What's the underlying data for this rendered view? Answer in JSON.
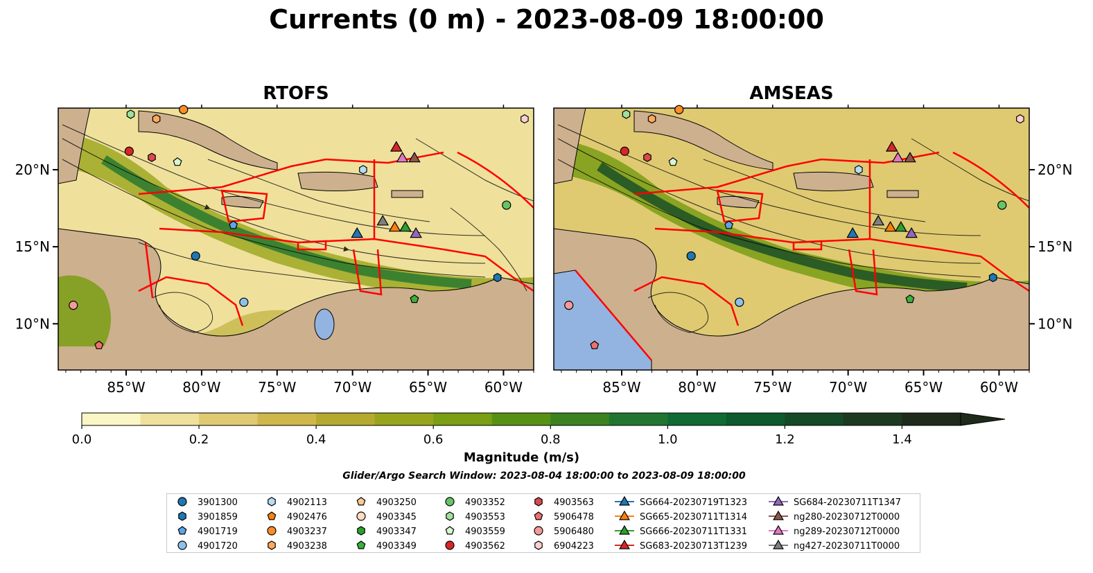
{
  "title": "Currents (0 m) - 2023-08-09 18:00:00",
  "colors": {
    "land": "#cdb08e",
    "water_inland": "#93b4e0",
    "boundary_red": "#ff0000",
    "colormap": [
      "#fbf6c5",
      "#efe19c",
      "#dfca72",
      "#cfb74b",
      "#b5aa30",
      "#98a51c",
      "#7a9e14",
      "#579114",
      "#3c8221",
      "#217530",
      "#0f6a33",
      "#0c5a2e",
      "#154a27",
      "#1c3a20",
      "#1e2a1a"
    ]
  },
  "chart_data": [
    {
      "type": "heatmap",
      "title": "RTOFS",
      "map_extent_lon": [
        -89.5,
        -58.0
      ],
      "map_extent_lat": [
        7.0,
        24.0
      ],
      "x_ticks": [
        -85,
        -80,
        -75,
        -70,
        -65,
        -60
      ],
      "x_tick_labels": [
        "85°W",
        "80°W",
        "75°W",
        "70°W",
        "65°W",
        "60°W"
      ],
      "y_ticks": [
        10,
        15,
        20
      ],
      "y_tick_labels": [
        "10°N",
        "15°N",
        "20°N"
      ],
      "y_tick_side": "left",
      "grid": false
    },
    {
      "type": "heatmap",
      "title": "AMSEAS",
      "map_extent_lon": [
        -89.5,
        -58.0
      ],
      "map_extent_lat": [
        7.0,
        24.0
      ],
      "x_ticks": [
        -85,
        -80,
        -75,
        -70,
        -65,
        -60
      ],
      "x_tick_labels": [
        "85°W",
        "80°W",
        "75°W",
        "70°W",
        "65°W",
        "60°W"
      ],
      "y_ticks": [
        10,
        15,
        20
      ],
      "y_tick_labels": [
        "10°N",
        "15°N",
        "20°N"
      ],
      "y_tick_side": "right",
      "grid": false
    }
  ],
  "colorbar": {
    "label": "Magnitude (m/s)",
    "min": 0.0,
    "max": 1.5,
    "extend": "max",
    "ticks": [
      0.0,
      0.2,
      0.4,
      0.6,
      0.8,
      1.0,
      1.2,
      1.4
    ],
    "tick_labels": [
      "0.0",
      "0.2",
      "0.4",
      "0.6",
      "0.8",
      "1.0",
      "1.2",
      "1.4"
    ]
  },
  "search_window": "Glider/Argo Search Window: 2023-08-04 18:00:00 to 2023-08-09 18:00:00",
  "legend": {
    "columns": [
      [
        {
          "label": "3901300",
          "marker": "circle",
          "color": "#1f77b4"
        },
        {
          "label": "3901859",
          "marker": "hexagon",
          "color": "#1f77b4"
        },
        {
          "label": "4901719",
          "marker": "pentagon",
          "color": "#5da5e4"
        },
        {
          "label": "4901720",
          "marker": "circle",
          "color": "#8ec1ea"
        }
      ],
      [
        {
          "label": "4902113",
          "marker": "hexagon",
          "color": "#b7ddf6"
        },
        {
          "label": "4902476",
          "marker": "pentagon",
          "color": "#ff7f0e"
        },
        {
          "label": "4903237",
          "marker": "circle",
          "color": "#ff8c2a"
        },
        {
          "label": "4903238",
          "marker": "hexagon",
          "color": "#ffa85c"
        }
      ],
      [
        {
          "label": "4903250",
          "marker": "pentagon",
          "color": "#ffc993"
        },
        {
          "label": "4903345",
          "marker": "circle",
          "color": "#ffdcbd"
        },
        {
          "label": "4903347",
          "marker": "hexagon",
          "color": "#2ca02c"
        },
        {
          "label": "4903349",
          "marker": "pentagon",
          "color": "#3bb03b"
        }
      ],
      [
        {
          "label": "4903352",
          "marker": "circle",
          "color": "#66c466"
        },
        {
          "label": "4903553",
          "marker": "hexagon",
          "color": "#9fe09f"
        },
        {
          "label": "4903559",
          "marker": "pentagon",
          "color": "#d6f5d0"
        },
        {
          "label": "4903562",
          "marker": "circle",
          "color": "#d62728"
        }
      ],
      [
        {
          "label": "4903563",
          "marker": "hexagon",
          "color": "#d94a4b"
        },
        {
          "label": "5906478",
          "marker": "pentagon",
          "color": "#ee7070"
        },
        {
          "label": "5906480",
          "marker": "circle",
          "color": "#f39a9a"
        },
        {
          "label": "6904223",
          "marker": "hexagon",
          "color": "#fbd0d0"
        }
      ],
      [
        {
          "label": "SG664-20230719T1323",
          "marker": "triangle",
          "color": "#1f77b4"
        },
        {
          "label": "SG665-20230711T1314",
          "marker": "triangle",
          "color": "#ff7f0e"
        },
        {
          "label": "SG666-20230711T1331",
          "marker": "triangle",
          "color": "#2ca02c"
        },
        {
          "label": "SG683-20230713T1239",
          "marker": "triangle",
          "color": "#d62728"
        }
      ],
      [
        {
          "label": "SG684-20230711T1347",
          "marker": "triangle",
          "color": "#9467bd"
        },
        {
          "label": "ng280-20230712T0000",
          "marker": "triangle",
          "color": "#8c564b"
        },
        {
          "label": "ng289-20230712T0000",
          "marker": "triangle",
          "color": "#e377c2"
        },
        {
          "label": "ng427-20230711T0000",
          "marker": "triangle",
          "color": "#7f7f7f"
        }
      ]
    ]
  },
  "platforms": [
    {
      "id": "4903562",
      "lon": -84.8,
      "lat": 21.2
    },
    {
      "id": "4903563",
      "lon": -83.3,
      "lat": 20.8
    },
    {
      "id": "4903559",
      "lon": -81.6,
      "lat": 20.5
    },
    {
      "id": "4903238",
      "lon": -83.0,
      "lat": 23.3
    },
    {
      "id": "4903553",
      "lon": -84.7,
      "lat": 23.6
    },
    {
      "id": "4903237",
      "lon": -81.2,
      "lat": 23.9
    },
    {
      "id": "6904223",
      "lon": -58.6,
      "lat": 23.3
    },
    {
      "id": "4902113",
      "lon": -69.3,
      "lat": 20.0
    },
    {
      "id": "4903352",
      "lon": -59.8,
      "lat": 17.7
    },
    {
      "id": "4901719",
      "lon": -77.9,
      "lat": 16.4
    },
    {
      "id": "3901300",
      "lon": -80.4,
      "lat": 14.4
    },
    {
      "id": "4901720",
      "lon": -77.2,
      "lat": 11.4
    },
    {
      "id": "3901859",
      "lon": -60.4,
      "lat": 13.0
    },
    {
      "id": "4903349",
      "lon": -65.9,
      "lat": 11.6
    },
    {
      "id": "5906480",
      "lon": -88.5,
      "lat": 11.2
    },
    {
      "id": "5906478",
      "lon": -86.8,
      "lat": 8.6
    }
  ],
  "gliders": [
    {
      "id": "SG664-20230719T1323",
      "lon": -69.7,
      "lat": 15.9
    },
    {
      "id": "SG665-20230711T1314",
      "lon": -67.2,
      "lat": 16.3
    },
    {
      "id": "SG666-20230711T1331",
      "lon": -66.5,
      "lat": 16.3
    },
    {
      "id": "SG684-20230711T1347",
      "lon": -65.8,
      "lat": 15.9
    },
    {
      "id": "ng427-20230711T0000",
      "lon": -68.0,
      "lat": 16.7
    },
    {
      "id": "SG683-20230713T1239",
      "lon": -67.1,
      "lat": 21.5
    },
    {
      "id": "ng289-20230712T0000",
      "lon": -66.7,
      "lat": 20.8
    },
    {
      "id": "ng280-20230712T0000",
      "lon": -65.9,
      "lat": 20.8
    }
  ]
}
